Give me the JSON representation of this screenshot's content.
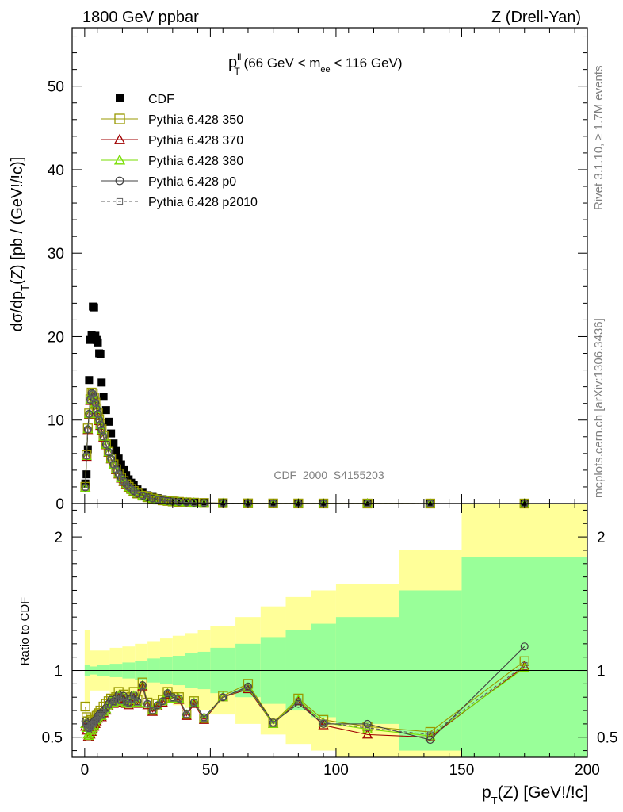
{
  "header": {
    "left": "1800 GeV ppbar",
    "right": "Z (Drell-Yan)"
  },
  "side_labels": {
    "rivet": "Rivet 3.1.10, ≥ 1.7M events",
    "mcplots": "mcplots.cern.ch [arXiv:1306.3436]"
  },
  "watermark": "CDF_2000_S4155203",
  "plot_title": {
    "p": "p",
    "sup": "ll",
    "sub": "T",
    "mid": " (66 GeV < m",
    "sub2": "ee",
    "end": " < 116 GeV)"
  },
  "ylabel_top": {
    "a": "dσ/dp",
    "sub": "T",
    "b": "(Z) [pb / (GeV!/!c)]"
  },
  "ylabel_ratio": "Ratio to CDF",
  "xlabel": {
    "p": "p",
    "sub": "T",
    "rest": "(Z) [GeV!/!c]"
  },
  "chart_data": [
    {
      "type": "scatter",
      "panel": "main",
      "xlim": [
        -5,
        200
      ],
      "ylim": [
        0,
        57
      ],
      "xticks": [
        0,
        50,
        100,
        150,
        200
      ],
      "yticks": [
        0,
        10,
        20,
        30,
        40,
        50
      ],
      "x": [
        0.25,
        0.75,
        1.25,
        1.75,
        2.25,
        2.75,
        3.25,
        3.75,
        4.25,
        4.75,
        5.25,
        5.75,
        6.25,
        6.75,
        7.5,
        8.5,
        9.5,
        10.5,
        11.5,
        12.5,
        13.5,
        14.5,
        15.5,
        16.5,
        17.5,
        18.5,
        19.5,
        21,
        23,
        25,
        27,
        29,
        31,
        33,
        35,
        37.5,
        40.5,
        43.5,
        47.5,
        55,
        65,
        75,
        85,
        95,
        112.5,
        137.5,
        175
      ],
      "series": [
        {
          "name": "CDF",
          "marker": "filled-square",
          "color": "#000000",
          "values": [
            2.4,
            3.5,
            6.5,
            14.8,
            19.6,
            20.2,
            23.6,
            23.5,
            20.1,
            19.6,
            19.3,
            18.0,
            17.9,
            14.5,
            12.8,
            11.2,
            9.8,
            8.4,
            7.2,
            6.3,
            5.4,
            4.7,
            4.0,
            3.4,
            2.9,
            2.5,
            2.2,
            1.7,
            1.3,
            1.0,
            0.8,
            0.65,
            0.52,
            0.42,
            0.35,
            0.28,
            0.2,
            0.15,
            0.1,
            0.05,
            0.03,
            0.018,
            0.012,
            0.008,
            0.004,
            0.002,
            0.0008
          ]
        },
        {
          "name": "Pythia 6.428 350",
          "marker": "open-square",
          "color": "#999900",
          "line": "solid",
          "values": [
            2.0,
            5.8,
            9.0,
            10.8,
            12.5,
            13.3,
            13.2,
            12.7,
            12.1,
            11.4,
            10.8,
            10.1,
            9.5,
            8.9,
            8.1,
            7.1,
            6.2,
            5.4,
            4.7,
            4.1,
            3.6,
            3.1,
            2.7,
            2.3,
            2.0,
            1.75,
            1.5,
            1.2,
            0.95,
            0.75,
            0.6,
            0.48,
            0.38,
            0.31,
            0.25,
            0.2,
            0.14,
            0.1,
            0.07,
            0.04,
            0.02,
            0.012,
            0.008,
            0.005,
            0.002,
            0.001,
            0.0008
          ]
        },
        {
          "name": "Pythia 6.428 370",
          "marker": "open-triangle",
          "color": "#a00000",
          "line": "solid",
          "values": [
            1.9,
            5.6,
            8.8,
            10.6,
            12.3,
            13.1,
            13.0,
            12.5,
            11.9,
            11.2,
            10.6,
            9.9,
            9.3,
            8.7,
            7.9,
            7.0,
            6.1,
            5.3,
            4.6,
            4.0,
            3.5,
            3.0,
            2.6,
            2.25,
            1.95,
            1.7,
            1.45,
            1.15,
            0.92,
            0.72,
            0.58,
            0.46,
            0.37,
            0.3,
            0.24,
            0.19,
            0.13,
            0.1,
            0.065,
            0.04,
            0.02,
            0.011,
            0.008,
            0.005,
            0.002,
            0.001,
            0.0008
          ]
        },
        {
          "name": "Pythia 6.428 380",
          "marker": "open-triangle",
          "color": "#77dd00",
          "line": "solid",
          "values": [
            1.9,
            5.7,
            8.9,
            10.7,
            12.4,
            13.2,
            13.1,
            12.6,
            12.0,
            11.3,
            10.7,
            10.0,
            9.4,
            8.8,
            8.0,
            7.05,
            6.15,
            5.35,
            4.65,
            4.05,
            3.55,
            3.05,
            2.65,
            2.28,
            1.98,
            1.72,
            1.48,
            1.18,
            0.93,
            0.73,
            0.59,
            0.47,
            0.37,
            0.3,
            0.24,
            0.19,
            0.13,
            0.1,
            0.066,
            0.04,
            0.02,
            0.011,
            0.008,
            0.005,
            0.002,
            0.001,
            0.0008
          ]
        },
        {
          "name": "Pythia 6.428 p0",
          "marker": "open-circle",
          "color": "#404040",
          "line": "solid",
          "values": [
            1.95,
            5.75,
            8.9,
            10.75,
            12.45,
            13.25,
            13.15,
            12.65,
            12.05,
            11.35,
            10.75,
            10.05,
            9.45,
            8.85,
            8.05,
            7.08,
            6.18,
            5.38,
            4.68,
            4.08,
            3.58,
            3.08,
            2.68,
            2.3,
            2.0,
            1.74,
            1.49,
            1.19,
            0.94,
            0.74,
            0.6,
            0.47,
            0.38,
            0.3,
            0.24,
            0.19,
            0.13,
            0.1,
            0.066,
            0.04,
            0.02,
            0.011,
            0.008,
            0.005,
            0.002,
            0.001,
            0.0009
          ]
        },
        {
          "name": "Pythia 6.428 p2010",
          "marker": "open-square-small",
          "color": "#606060",
          "line": "dashed",
          "values": [
            1.95,
            5.7,
            8.85,
            10.7,
            12.4,
            13.2,
            13.1,
            12.6,
            12.0,
            11.3,
            10.7,
            10.0,
            9.4,
            8.8,
            8.0,
            7.05,
            6.15,
            5.35,
            4.65,
            4.05,
            3.55,
            3.05,
            2.65,
            2.28,
            1.98,
            1.72,
            1.48,
            1.18,
            0.93,
            0.73,
            0.59,
            0.47,
            0.37,
            0.3,
            0.24,
            0.19,
            0.13,
            0.1,
            0.066,
            0.04,
            0.02,
            0.011,
            0.008,
            0.005,
            0.002,
            0.001,
            0.0008
          ]
        }
      ]
    },
    {
      "type": "line",
      "panel": "ratio",
      "xlim": [
        -5,
        200
      ],
      "ylim": [
        0.35,
        2.25
      ],
      "xticks": [
        0,
        50,
        100,
        150,
        200
      ],
      "yticks": [
        0.5,
        1,
        2
      ],
      "reference_line": 1,
      "band_colors": {
        "stat": "#99ff99",
        "total": "#ffff99"
      },
      "bands": {
        "edges": [
          0,
          2,
          5,
          10,
          15,
          20,
          25,
          30,
          35,
          40,
          45,
          50,
          60,
          70,
          80,
          90,
          100,
          125,
          150,
          200
        ],
        "stat_hi": [
          1.04,
          1.03,
          1.04,
          1.05,
          1.06,
          1.07,
          1.09,
          1.1,
          1.11,
          1.13,
          1.14,
          1.17,
          1.2,
          1.25,
          1.3,
          1.35,
          1.4,
          1.6,
          1.85
        ],
        "total_hi": [
          1.3,
          1.15,
          1.15,
          1.17,
          1.18,
          1.2,
          1.22,
          1.24,
          1.26,
          1.28,
          1.3,
          1.33,
          1.4,
          1.48,
          1.55,
          1.6,
          1.65,
          1.9,
          2.3
        ],
        "total_lo": [
          0.75,
          0.85,
          0.85,
          0.83,
          0.82,
          0.8,
          0.78,
          0.76,
          0.74,
          0.72,
          0.7,
          0.67,
          0.6,
          0.52,
          0.45,
          0.4,
          0.35,
          0.35,
          0.35
        ],
        "stat_lo": [
          0.96,
          0.97,
          0.96,
          0.95,
          0.94,
          0.93,
          0.91,
          0.9,
          0.89,
          0.87,
          0.86,
          0.83,
          0.8,
          0.75,
          0.7,
          0.65,
          0.6,
          0.4,
          0.35
        ]
      },
      "x": [
        0.25,
        0.75,
        1.25,
        1.75,
        2.25,
        2.75,
        3.25,
        3.75,
        4.25,
        4.75,
        5.25,
        5.75,
        6.25,
        6.75,
        7.5,
        8.5,
        9.5,
        10.5,
        11.5,
        12.5,
        13.5,
        14.5,
        15.5,
        16.5,
        17.5,
        18.5,
        19.5,
        21,
        23,
        25,
        27,
        29,
        31,
        33,
        35,
        37.5,
        40.5,
        43.5,
        47.5,
        55,
        65,
        75,
        85,
        95,
        112.5,
        137.5,
        175
      ],
      "series": [
        {
          "name": "Pythia 6.428 350",
          "marker": "open-square",
          "color": "#999900",
          "line": "solid",
          "values": [
            0.73,
            0.65,
            0.62,
            0.58,
            0.6,
            0.63,
            0.62,
            0.6,
            0.62,
            0.66,
            0.67,
            0.68,
            0.7,
            0.68,
            0.73,
            0.75,
            0.77,
            0.79,
            0.78,
            0.8,
            0.84,
            0.79,
            0.82,
            0.78,
            0.77,
            0.8,
            0.84,
            0.78,
            0.91,
            0.76,
            0.7,
            0.75,
            0.78,
            0.84,
            0.8,
            0.8,
            0.67,
            0.77,
            0.64,
            0.81,
            0.9,
            0.61,
            0.79,
            0.63,
            0.58,
            0.54,
            1.07
          ]
        },
        {
          "name": "Pythia 6.428 370",
          "marker": "open-triangle",
          "color": "#a00000",
          "line": "solid",
          "values": [
            0.58,
            0.55,
            0.5,
            0.5,
            0.52,
            0.54,
            0.56,
            0.58,
            0.6,
            0.62,
            0.64,
            0.65,
            0.66,
            0.65,
            0.68,
            0.7,
            0.73,
            0.76,
            0.75,
            0.77,
            0.8,
            0.76,
            0.79,
            0.75,
            0.74,
            0.77,
            0.8,
            0.75,
            0.88,
            0.74,
            0.69,
            0.73,
            0.76,
            0.82,
            0.79,
            0.78,
            0.66,
            0.75,
            0.63,
            0.8,
            0.86,
            0.6,
            0.77,
            0.59,
            0.52,
            0.5,
            1.03
          ]
        },
        {
          "name": "Pythia 6.428 380",
          "marker": "open-triangle",
          "color": "#77dd00",
          "line": "solid",
          "values": [
            0.6,
            0.57,
            0.52,
            0.51,
            0.53,
            0.55,
            0.57,
            0.59,
            0.61,
            0.63,
            0.65,
            0.66,
            0.67,
            0.66,
            0.69,
            0.71,
            0.74,
            0.77,
            0.76,
            0.78,
            0.81,
            0.77,
            0.8,
            0.76,
            0.75,
            0.78,
            0.81,
            0.76,
            0.89,
            0.75,
            0.7,
            0.74,
            0.77,
            0.83,
            0.79,
            0.79,
            0.67,
            0.76,
            0.64,
            0.8,
            0.87,
            0.6,
            0.78,
            0.61,
            0.56,
            0.51,
            1.02
          ]
        },
        {
          "name": "Pythia 6.428 p0",
          "marker": "open-circle",
          "color": "#404040",
          "line": "solid",
          "values": [
            0.62,
            0.6,
            0.58,
            0.57,
            0.59,
            0.6,
            0.61,
            0.62,
            0.63,
            0.64,
            0.66,
            0.67,
            0.68,
            0.67,
            0.7,
            0.72,
            0.75,
            0.78,
            0.77,
            0.79,
            0.82,
            0.78,
            0.81,
            0.77,
            0.76,
            0.79,
            0.82,
            0.77,
            0.89,
            0.75,
            0.7,
            0.74,
            0.77,
            0.83,
            0.8,
            0.79,
            0.67,
            0.76,
            0.65,
            0.8,
            0.88,
            0.61,
            0.75,
            0.6,
            0.6,
            0.48,
            1.18
          ]
        },
        {
          "name": "Pythia 6.428 p2010",
          "marker": "open-square-small",
          "color": "#606060",
          "line": "dashed",
          "values": [
            0.61,
            0.59,
            0.57,
            0.56,
            0.58,
            0.59,
            0.6,
            0.61,
            0.62,
            0.63,
            0.65,
            0.66,
            0.67,
            0.66,
            0.69,
            0.71,
            0.74,
            0.77,
            0.76,
            0.78,
            0.81,
            0.77,
            0.8,
            0.76,
            0.75,
            0.78,
            0.81,
            0.76,
            0.88,
            0.75,
            0.7,
            0.74,
            0.77,
            0.83,
            0.79,
            0.79,
            0.67,
            0.76,
            0.64,
            0.8,
            0.87,
            0.6,
            0.77,
            0.61,
            0.57,
            0.52,
            1.04
          ]
        }
      ]
    }
  ]
}
